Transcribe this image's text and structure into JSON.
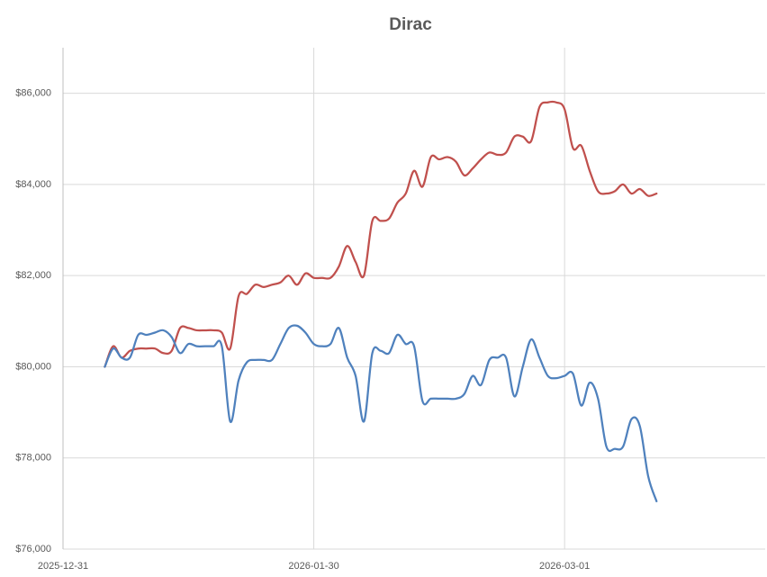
{
  "chart_data": {
    "type": "line",
    "title": "Dirac",
    "x": [
      "2026-01-05",
      "2026-01-06",
      "2026-01-07",
      "2026-01-08",
      "2026-01-09",
      "2026-01-10",
      "2026-01-11",
      "2026-01-12",
      "2026-01-13",
      "2026-01-14",
      "2026-01-15",
      "2026-01-16",
      "2026-01-17",
      "2026-01-18",
      "2026-01-19",
      "2026-01-20",
      "2026-01-21",
      "2026-01-22",
      "2026-01-23",
      "2026-01-24",
      "2026-01-25",
      "2026-01-26",
      "2026-01-27",
      "2026-01-28",
      "2026-01-29",
      "2026-01-30",
      "2026-01-31",
      "2026-02-01",
      "2026-02-02",
      "2026-02-03",
      "2026-02-04",
      "2026-02-05",
      "2026-02-06",
      "2026-02-07",
      "2026-02-08",
      "2026-02-09",
      "2026-02-10",
      "2026-02-11",
      "2026-02-12",
      "2026-02-13",
      "2026-02-14",
      "2026-02-15",
      "2026-02-16",
      "2026-02-17",
      "2026-02-18",
      "2026-02-19",
      "2026-02-20",
      "2026-02-21",
      "2026-02-22",
      "2026-02-23",
      "2026-02-24",
      "2026-02-25",
      "2026-02-26",
      "2026-02-27",
      "2026-02-28",
      "2026-03-01",
      "2026-03-02",
      "2026-03-03",
      "2026-03-04",
      "2026-03-05",
      "2026-03-06",
      "2026-03-07",
      "2026-03-08",
      "2026-03-09",
      "2026-03-10",
      "2026-03-11",
      "2026-03-12"
    ],
    "series": [
      {
        "color": "#c0504d",
        "values": [
          80000,
          80450,
          80200,
          80350,
          80400,
          80400,
          80400,
          80300,
          80350,
          80850,
          80850,
          80800,
          80800,
          80800,
          80750,
          80400,
          81550,
          81600,
          81800,
          81750,
          81800,
          81850,
          82000,
          81800,
          82050,
          81950,
          81950,
          81950,
          82200,
          82650,
          82300,
          82000,
          83200,
          83200,
          83250,
          83600,
          83800,
          84300,
          83950,
          84600,
          84550,
          84600,
          84500,
          84200,
          84350,
          84550,
          84700,
          84650,
          84700,
          85050,
          85050,
          84950,
          85700,
          85800,
          85800,
          85650,
          84800,
          84850,
          84300,
          83850,
          83800,
          83850,
          84000,
          83800,
          83900,
          83750,
          83800
        ]
      },
      {
        "color": "#4f81bd",
        "values": [
          80000,
          80400,
          80200,
          80200,
          80700,
          80700,
          80750,
          80800,
          80650,
          80300,
          80500,
          80450,
          80450,
          80450,
          80450,
          78800,
          79700,
          80100,
          80150,
          80150,
          80150,
          80500,
          80850,
          80900,
          80750,
          80500,
          80450,
          80500,
          80850,
          80200,
          79800,
          78800,
          80300,
          80350,
          80300,
          80700,
          80500,
          80450,
          79250,
          79300,
          79300,
          79300,
          79300,
          79400,
          79800,
          79600,
          80150,
          80200,
          80200,
          79350,
          80000,
          80600,
          80200,
          79800,
          79750,
          79800,
          79850,
          79150,
          79650,
          79300,
          78250,
          78200,
          78250,
          78850,
          78700,
          77600,
          77050
        ]
      }
    ],
    "xlim": [
      "2025-12-31",
      "2026-03-25"
    ],
    "xticks": [
      "2025-12-31",
      "2026-01-30",
      "2026-03-01"
    ],
    "ylim": [
      76000,
      87000
    ],
    "yticks": [
      {
        "value": 76000,
        "label": "$76,000"
      },
      {
        "value": 78000,
        "label": "$78,000"
      },
      {
        "value": 80000,
        "label": "$80,000"
      },
      {
        "value": 82000,
        "label": "$82,000"
      },
      {
        "value": 84000,
        "label": "$84,000"
      },
      {
        "value": 86000,
        "label": "$86,000"
      }
    ],
    "grid": true
  }
}
